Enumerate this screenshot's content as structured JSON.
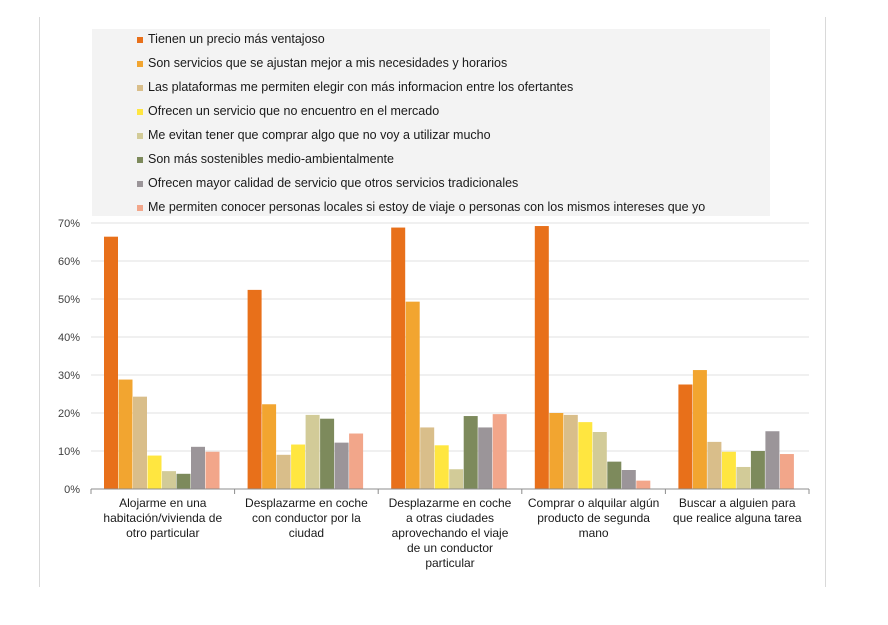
{
  "chart_data": {
    "type": "bar",
    "title": "",
    "xlabel": "",
    "ylabel": "",
    "ylim": [
      0,
      0.7
    ],
    "y_ticks": [
      "0%",
      "10%",
      "20%",
      "30%",
      "40%",
      "50%",
      "60%",
      "70%"
    ],
    "grid": true,
    "legend_position": "top",
    "categories": [
      [
        "Alojarme en una",
        "habitación/vivienda de",
        "otro particular"
      ],
      [
        "Desplazarme en coche",
        "con conductor por la",
        "ciudad"
      ],
      [
        "Desplazarme en coche",
        "a otras ciudades",
        "aprovechando el viaje",
        "de un conductor",
        "particular"
      ],
      [
        "Comprar o alquilar algún",
        "producto de segunda",
        "mano"
      ],
      [
        "Buscar a alguien para",
        "que realice alguna tarea"
      ]
    ],
    "series": [
      {
        "name": "Tienen un precio más ventajoso",
        "color": "#E8701A",
        "values": [
          0.664,
          0.524,
          0.688,
          0.692,
          0.275
        ]
      },
      {
        "name": "Son servicios que se ajustan mejor a mis necesidades y horarios",
        "color": "#F2A530",
        "values": [
          0.288,
          0.223,
          0.493,
          0.2,
          0.313
        ]
      },
      {
        "name": "Las plataformas me permiten elegir con más informacion entre los ofertantes",
        "color": "#D9BE8A",
        "values": [
          0.243,
          0.09,
          0.162,
          0.195,
          0.124
        ]
      },
      {
        "name": "Ofrecen un servicio que no encuentro en el mercado",
        "color": "#FFE640",
        "values": [
          0.088,
          0.117,
          0.115,
          0.176,
          0.098
        ]
      },
      {
        "name": "Me evitan tener que comprar algo que no voy a utilizar mucho",
        "color": "#D2CB98",
        "values": [
          0.047,
          0.195,
          0.052,
          0.15,
          0.058
        ]
      },
      {
        "name": "Son más sostenibles medio-ambientalmente",
        "color": "#7D8A5C",
        "values": [
          0.04,
          0.185,
          0.192,
          0.072,
          0.1
        ]
      },
      {
        "name": "Ofrecen mayor calidad de servicio que otros servicios tradicionales",
        "color": "#9B9599",
        "values": [
          0.111,
          0.122,
          0.162,
          0.05,
          0.152
        ]
      },
      {
        "name": "Me permiten conocer personas locales si estoy de viaje o personas con los mismos intereses que yo",
        "color": "#F2A68A",
        "values": [
          0.098,
          0.146,
          0.197,
          0.022,
          0.092
        ]
      }
    ]
  }
}
